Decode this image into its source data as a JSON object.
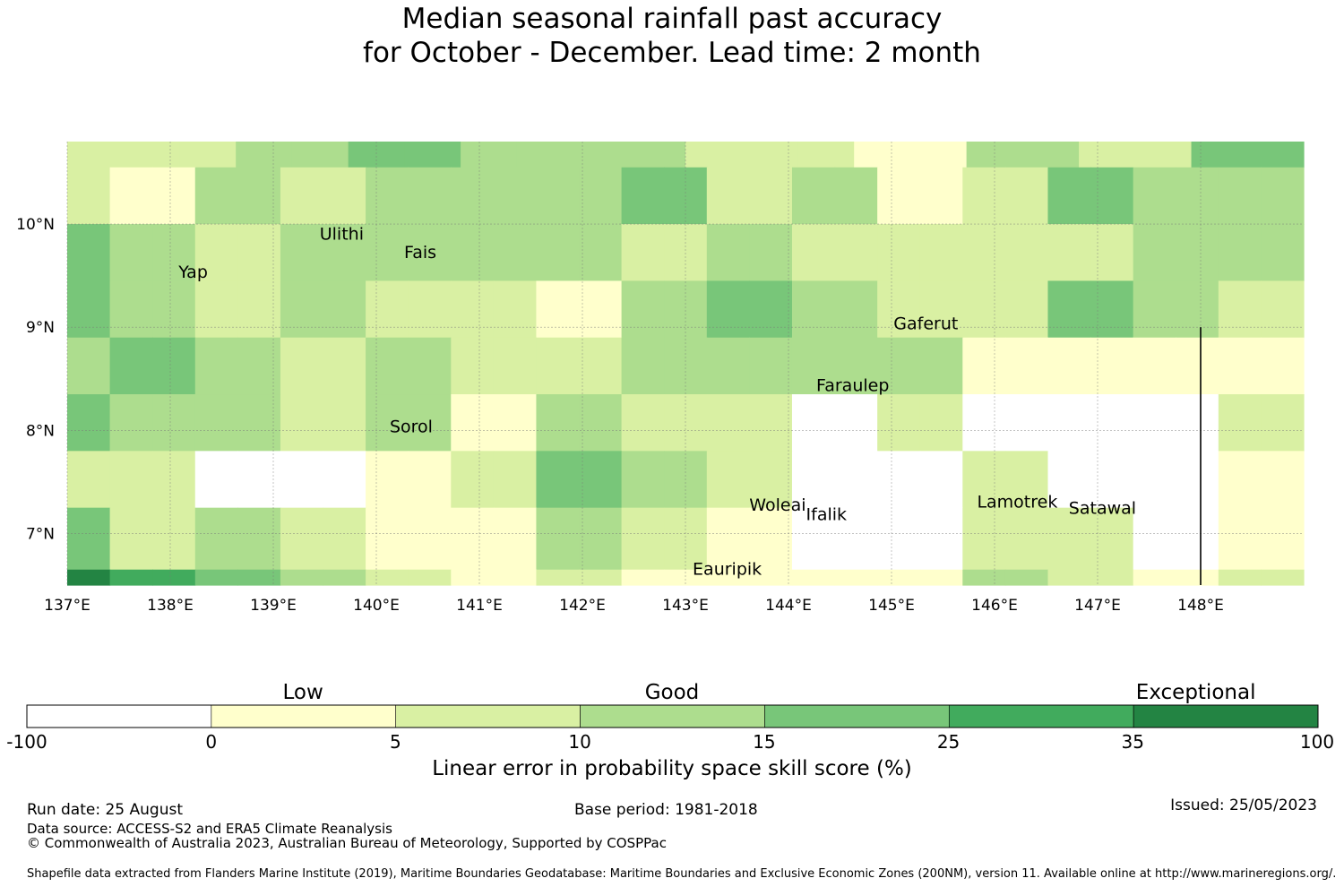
{
  "title": {
    "line1": "Median seasonal rainfall past accuracy",
    "line2": "for October - December. Lead time: 2 month"
  },
  "map": {
    "lon_range": [
      137.0,
      149.0
    ],
    "lat_range": [
      6.5,
      10.8
    ],
    "lon_ticks": [
      {
        "value": 137,
        "label": "137°E"
      },
      {
        "value": 138,
        "label": "138°E"
      },
      {
        "value": 139,
        "label": "139°E"
      },
      {
        "value": 140,
        "label": "140°E"
      },
      {
        "value": 141,
        "label": "141°E"
      },
      {
        "value": 142,
        "label": "142°E"
      },
      {
        "value": 143,
        "label": "143°E"
      },
      {
        "value": 144,
        "label": "144°E"
      },
      {
        "value": 145,
        "label": "145°E"
      },
      {
        "value": 146,
        "label": "146°E"
      },
      {
        "value": 147,
        "label": "147°E"
      },
      {
        "value": 148,
        "label": "148°E"
      }
    ],
    "lat_ticks": [
      {
        "value": 10,
        "label": "10°N"
      },
      {
        "value": 9,
        "label": "9°N"
      },
      {
        "value": 8,
        "label": "8°N"
      },
      {
        "value": 7,
        "label": "7°N"
      }
    ],
    "boundary_line": {
      "lon": 148.0,
      "lat_from": 6.5,
      "lat_to": 9.0
    },
    "grid_note": "score class per cell: 0 = -100 to 0, 1 = 0-5, 2 = 5-10, 3 = 10-15, 4 = 15-25, 5 = 25-35, 6 = 35-100",
    "rows": [
      {
        "lat_top": 10.8,
        "lat_bottom": 10.55,
        "classes": [
          2,
          2,
          2,
          3,
          3,
          4,
          4,
          3,
          3,
          3,
          3,
          2,
          2,
          2,
          1,
          1,
          3,
          3,
          2,
          2,
          4,
          4
        ]
      },
      {
        "lat_top": 10.55,
        "lat_bottom": 10.0,
        "classes": [
          2,
          1,
          1,
          3,
          3,
          2,
          2,
          3,
          3,
          3,
          3,
          3,
          3,
          4,
          4,
          2,
          2,
          3,
          3,
          1,
          1,
          2,
          2,
          4,
          4,
          3,
          3,
          3,
          3
        ]
      },
      {
        "lat_top": 10.0,
        "lat_bottom": 9.45,
        "classes": [
          4,
          3,
          3,
          2,
          2,
          3,
          3,
          3,
          3,
          3,
          3,
          3,
          3,
          2,
          2,
          3,
          3,
          2,
          2,
          2,
          2,
          2,
          2,
          2,
          2,
          3,
          3,
          3,
          3
        ]
      },
      {
        "lat_top": 9.45,
        "lat_bottom": 8.9,
        "classes": [
          4,
          3,
          3,
          2,
          2,
          3,
          3,
          2,
          2,
          2,
          2,
          1,
          1,
          3,
          3,
          4,
          4,
          3,
          3,
          2,
          2,
          2,
          2,
          4,
          4,
          3,
          3,
          2,
          2
        ]
      },
      {
        "lat_top": 8.9,
        "lat_bottom": 8.35,
        "classes": [
          3,
          4,
          4,
          3,
          3,
          2,
          2,
          3,
          3,
          2,
          2,
          2,
          2,
          3,
          3,
          3,
          3,
          3,
          3,
          3,
          3,
          1,
          1,
          1,
          1,
          1,
          1,
          1,
          1
        ]
      },
      {
        "lat_top": 8.35,
        "lat_bottom": 7.8,
        "classes": [
          4,
          3,
          3,
          3,
          3,
          2,
          2,
          3,
          3,
          1,
          1,
          3,
          3,
          2,
          2,
          2,
          2,
          0,
          0,
          2,
          2,
          0,
          0,
          0,
          0,
          0,
          0,
          2,
          2
        ]
      },
      {
        "lat_top": 7.8,
        "lat_bottom": 7.25,
        "classes": [
          2,
          2,
          2,
          0,
          0,
          0,
          0,
          1,
          1,
          2,
          2,
          4,
          4,
          3,
          3,
          2,
          2,
          0,
          0,
          0,
          0,
          2,
          2,
          0,
          0,
          0,
          0,
          1,
          1
        ]
      },
      {
        "lat_top": 7.25,
        "lat_bottom": 6.65,
        "classes": [
          4,
          2,
          2,
          3,
          3,
          2,
          2,
          1,
          1,
          1,
          1,
          3,
          3,
          2,
          2,
          1,
          1,
          0,
          0,
          0,
          0,
          2,
          2,
          2,
          2,
          0,
          0,
          1,
          1
        ]
      },
      {
        "lat_top": 6.65,
        "lat_bottom": 6.5,
        "classes": [
          6,
          5,
          5,
          4,
          4,
          3,
          3,
          2,
          2,
          1,
          1,
          2,
          2,
          1,
          1,
          1,
          1,
          1,
          1,
          1,
          1,
          3,
          3,
          2,
          2,
          1,
          1,
          2,
          2
        ]
      }
    ],
    "places": [
      {
        "name": "Ulithi",
        "lon": 139.45,
        "lat": 9.85
      },
      {
        "name": "Fais",
        "lon": 140.27,
        "lat": 9.67
      },
      {
        "name": "Yap",
        "lon": 138.08,
        "lat": 9.48
      },
      {
        "name": "Gaferut",
        "lon": 145.02,
        "lat": 8.98
      },
      {
        "name": "Faraulep",
        "lon": 144.27,
        "lat": 8.38
      },
      {
        "name": "Sorol",
        "lon": 140.13,
        "lat": 7.98
      },
      {
        "name": "Woleai",
        "lon": 143.62,
        "lat": 7.22
      },
      {
        "name": "Ifalik",
        "lon": 144.17,
        "lat": 7.13
      },
      {
        "name": "Lamotrek",
        "lon": 145.83,
        "lat": 7.25
      },
      {
        "name": "Satawal",
        "lon": 146.72,
        "lat": 7.19
      },
      {
        "name": "Eauripik",
        "lon": 143.07,
        "lat": 6.6
      }
    ]
  },
  "colorbar": {
    "categories": [
      {
        "label": "Low",
        "position": 0.214
      },
      {
        "label": "Good",
        "position": 0.5
      },
      {
        "label": "Exceptional",
        "position": 0.906
      }
    ],
    "bins": [
      {
        "from": "-100",
        "to": "0",
        "color": "#ffffff"
      },
      {
        "from": "0",
        "to": "5",
        "color": "#ffffcc"
      },
      {
        "from": "5",
        "to": "10",
        "color": "#d9f0a3"
      },
      {
        "from": "10",
        "to": "15",
        "color": "#addd8e"
      },
      {
        "from": "15",
        "to": "25",
        "color": "#78c679"
      },
      {
        "from": "25",
        "to": "35",
        "color": "#41ab5d"
      },
      {
        "from": "35",
        "to": "100",
        "color": "#238443"
      }
    ],
    "ticks": [
      "-100",
      "0",
      "5",
      "10",
      "15",
      "25",
      "35",
      "100"
    ],
    "title": "Linear error in probability space skill score (%)"
  },
  "footer": {
    "run_date": "Run date: 25 August",
    "base_period": "Base period: 1981-2018",
    "issued": "Issued: 25/05/2023",
    "data_source": "Data source: ACCESS-S2 and ERA5 Climate Reanalysis",
    "copyright": "© Commonwealth of Australia 2023, Australian Bureau of Meteorology, Supported by COSPPac",
    "shapefile": "Shapefile data extracted from Flanders Marine Institute (2019), Maritime Boundaries Geodatabase: Maritime Boundaries and Exclusive Economic Zones (200NM), version 11. Available online at http://www.marineregions.org/."
  }
}
